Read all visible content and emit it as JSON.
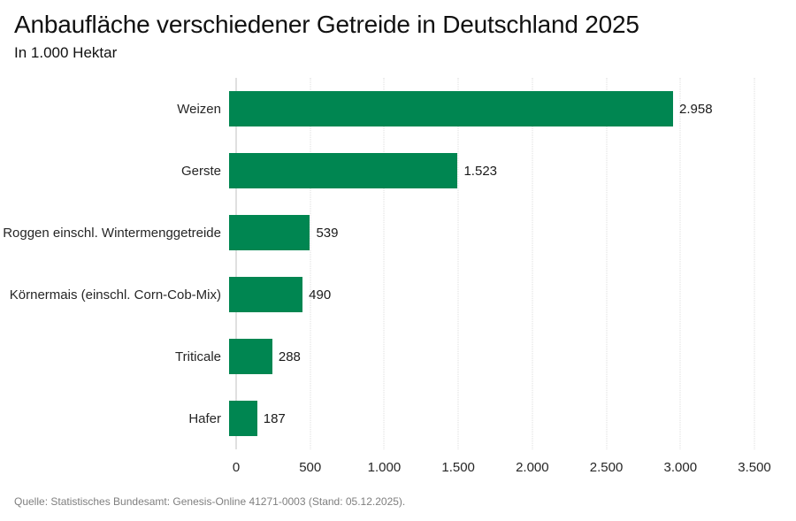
{
  "chart_data": {
    "type": "bar",
    "orientation": "horizontal",
    "title": "Anbaufläche verschiedener Getreide in Deutschland 2025",
    "subtitle": "In 1.000 Hektar",
    "categories": [
      "Weizen",
      "Gerste",
      "Roggen einschl. Wintermenggetreide",
      "Körnermais (einschl. Corn-Cob-Mix)",
      "Triticale",
      "Hafer"
    ],
    "values": [
      2958,
      1523,
      539,
      490,
      288,
      187
    ],
    "value_labels": [
      "2.958",
      "1.523",
      "539",
      "490",
      "288",
      "187"
    ],
    "xlabel": "",
    "ylabel": "",
    "xlim": [
      0,
      3500
    ],
    "xticks": [
      0,
      500,
      1000,
      1500,
      2000,
      2500,
      3000,
      3500
    ],
    "xtick_labels": [
      "0",
      "500",
      "1.000",
      "1.500",
      "2.000",
      "2.500",
      "3.000",
      "3.500"
    ],
    "grid": "vertical-dotted",
    "legend": "none"
  },
  "footer": {
    "source": "Quelle: Statistisches Bundesamt: Genesis-Online 41271-0003 (Stand: 05.12.2025)."
  },
  "colors": {
    "bar": "#008651",
    "grid_line": "#dcdcdc",
    "zero_line": "#c2c2c2",
    "text": "#1a1a1a",
    "source_text": "#7f7f7f",
    "background": "#ffffff"
  }
}
